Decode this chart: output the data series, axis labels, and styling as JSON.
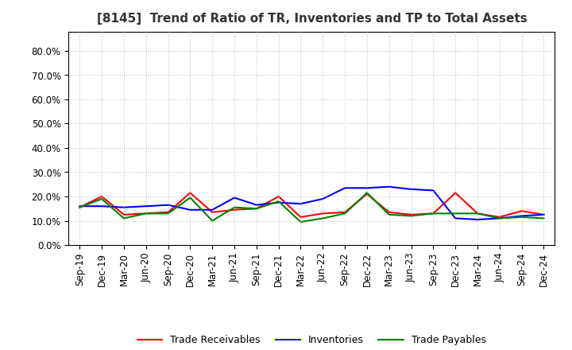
{
  "title": "[8145]  Trend of Ratio of TR, Inventories and TP to Total Assets",
  "x_labels": [
    "Sep-19",
    "Dec-19",
    "Mar-20",
    "Jun-20",
    "Sep-20",
    "Dec-20",
    "Mar-21",
    "Jun-21",
    "Sep-21",
    "Dec-21",
    "Mar-22",
    "Jun-22",
    "Sep-22",
    "Dec-22",
    "Mar-23",
    "Jun-23",
    "Sep-23",
    "Dec-23",
    "Mar-24",
    "Jun-24",
    "Sep-24",
    "Dec-24"
  ],
  "trade_receivables": [
    0.155,
    0.2,
    0.125,
    0.13,
    0.135,
    0.215,
    0.135,
    0.145,
    0.15,
    0.2,
    0.115,
    0.13,
    0.135,
    0.21,
    0.135,
    0.125,
    0.13,
    0.215,
    0.13,
    0.115,
    0.14,
    0.125
  ],
  "inventories": [
    0.16,
    0.16,
    0.155,
    0.16,
    0.165,
    0.145,
    0.145,
    0.195,
    0.165,
    0.175,
    0.17,
    0.19,
    0.235,
    0.235,
    0.24,
    0.23,
    0.225,
    0.11,
    0.105,
    0.11,
    0.12,
    0.125
  ],
  "trade_payables": [
    0.155,
    0.19,
    0.11,
    0.13,
    0.13,
    0.195,
    0.1,
    0.155,
    0.15,
    0.18,
    0.095,
    0.11,
    0.13,
    0.215,
    0.125,
    0.12,
    0.13,
    0.13,
    0.13,
    0.11,
    0.115,
    0.11
  ],
  "ylim": [
    0.0,
    0.88
  ],
  "yticks": [
    0.0,
    0.1,
    0.2,
    0.3,
    0.4,
    0.5,
    0.6,
    0.7,
    0.8
  ],
  "ytick_labels": [
    "0.0%",
    "10.0%",
    "20.0%",
    "30.0%",
    "40.0%",
    "50.0%",
    "60.0%",
    "70.0%",
    "80.0%"
  ],
  "colors": {
    "trade_receivables": "#FF0000",
    "inventories": "#0000FF",
    "trade_payables": "#008000"
  },
  "legend_labels": [
    "Trade Receivables",
    "Inventories",
    "Trade Payables"
  ],
  "background_color": "#FFFFFF",
  "plot_bg_color": "#FFFFFF",
  "grid_color": "#AAAAAA",
  "line_width": 1.5,
  "title_fontsize": 11,
  "tick_fontsize": 8.5,
  "legend_fontsize": 9
}
